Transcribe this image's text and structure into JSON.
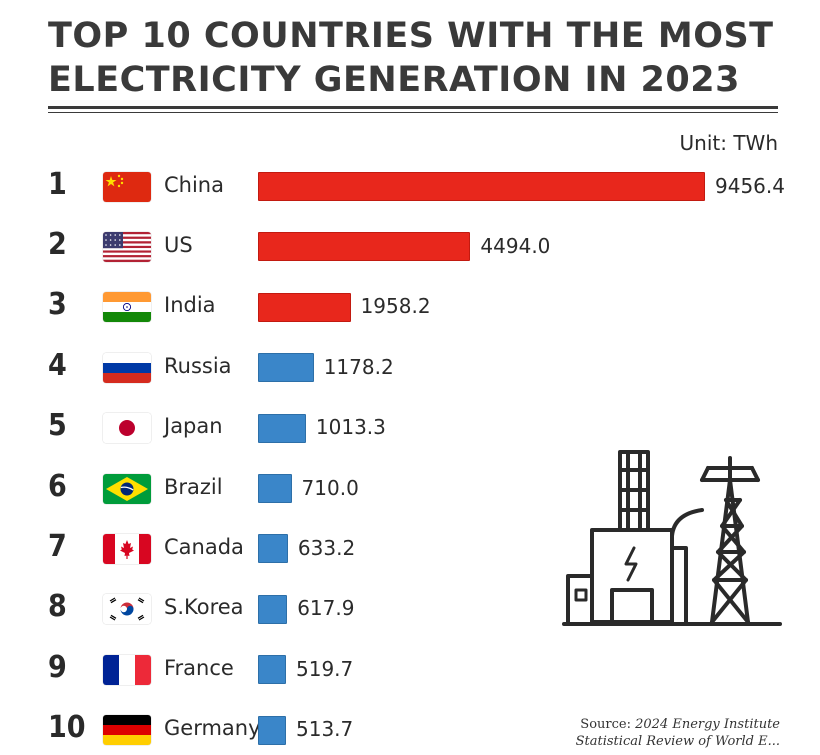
{
  "chart_data": {
    "type": "bar",
    "orientation": "horizontal",
    "title": "TOP 10 COUNTRIES WITH THE MOST ELECTRICITY GENERATION IN 2023",
    "title_lines": [
      "TOP 10 COUNTRIES WITH THE MOST",
      "ELECTRICITY GENERATION IN 2023"
    ],
    "unit_label": "Unit: TWh",
    "ranks": [
      "1",
      "2",
      "3",
      "4",
      "5",
      "6",
      "7",
      "8",
      "9",
      "10"
    ],
    "categories": [
      "China",
      "US",
      "India",
      "Russia",
      "Japan",
      "Brazil",
      "Canada",
      "S.Korea",
      "France",
      "Germany"
    ],
    "values": [
      9456.4,
      4494.0,
      1958.2,
      1178.2,
      1013.3,
      710.0,
      633.2,
      617.9,
      519.7,
      513.7
    ],
    "value_labels": [
      "9456.4",
      "4494.0",
      "1958.2",
      "1178.2",
      "1013.3",
      "710.0",
      "633.2",
      "617.9",
      "519.7",
      "513.7"
    ],
    "bar_colors": [
      "#e8271c",
      "#e8271c",
      "#e8271c",
      "#3a86c9",
      "#3a86c9",
      "#3a86c9",
      "#3a86c9",
      "#3a86c9",
      "#3a86c9",
      "#3a86c9"
    ],
    "flags": [
      "china-flag",
      "us-flag",
      "india-flag",
      "russia-flag",
      "japan-flag",
      "brazil-flag",
      "canada-flag",
      "south-korea-flag",
      "france-flag",
      "germany-flag"
    ],
    "xlim": [
      0,
      9456.4
    ],
    "source_label": "Source:",
    "source_name": "2024 Energy Institute",
    "source_line2": "Statistical Review of World E..."
  }
}
